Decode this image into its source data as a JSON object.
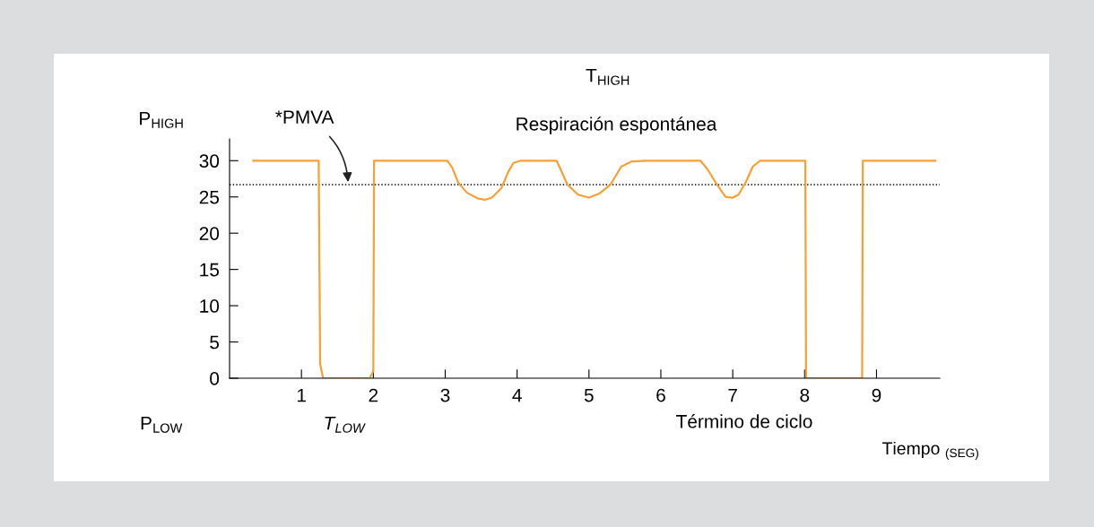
{
  "chart_data": {
    "type": "line",
    "xlabel": "Tiempo $_{(SEG)}$",
    "x": [
      0.33,
      1.24,
      1.26,
      1.3,
      1.95,
      2.0,
      2.01,
      3.03,
      3.1,
      3.18,
      3.3,
      3.45,
      3.55,
      3.65,
      3.78,
      3.88,
      3.95,
      4.05,
      4.55,
      4.62,
      4.7,
      4.85,
      5.0,
      5.15,
      5.3,
      5.45,
      5.6,
      5.8,
      6.55,
      6.65,
      6.78,
      6.9,
      7.0,
      7.08,
      7.18,
      7.28,
      7.38,
      8.01,
      8.02,
      8.8,
      8.81,
      9.82
    ],
    "series": [
      {
        "color": "#f7a033",
        "values": [
          30,
          30,
          2,
          0,
          0,
          1,
          30,
          30,
          29,
          27,
          25.6,
          24.8,
          24.6,
          24.9,
          26.2,
          28.5,
          29.7,
          30,
          30,
          28.5,
          26.7,
          25.3,
          24.9,
          25.5,
          26.7,
          29.2,
          29.9,
          30,
          30,
          28.8,
          26.7,
          25,
          24.9,
          25.3,
          27,
          29.2,
          30,
          30,
          0,
          0,
          30,
          30
        ]
      }
    ],
    "xlim": [
      0,
      9.88
    ],
    "ylim": [
      0,
      33
    ],
    "xticks": [
      1,
      2,
      3,
      4,
      5,
      6,
      7,
      8,
      9
    ],
    "yticks": [
      0,
      5,
      10,
      15,
      20,
      25,
      30
    ],
    "ref_lines": [
      {
        "axis": "y",
        "value": 26.7,
        "color": "#000000",
        "line_style": "dotted"
      }
    ],
    "annotations": [
      {
        "text": "*PMVA",
        "x": 1.65,
        "y": 26.7
      },
      "T$_{HIGH}$",
      "P$_{HIGH}$",
      "Respiración espontánea",
      "P$_{LOW}$",
      "T$_{LOW}$",
      "Término de ciclo"
    ],
    "grid": false,
    "legend": false,
    "marker": "none",
    "line_style": "solid"
  }
}
